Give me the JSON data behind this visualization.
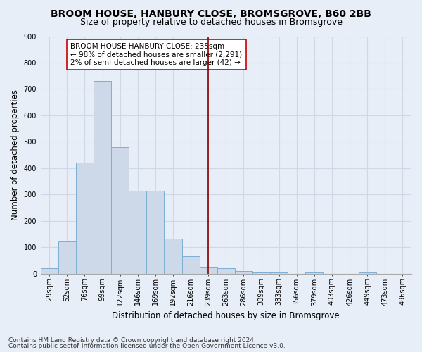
{
  "title": "BROOM HOUSE, HANBURY CLOSE, BROMSGROVE, B60 2BB",
  "subtitle": "Size of property relative to detached houses in Bromsgrove",
  "xlabel": "Distribution of detached houses by size in Bromsgrove",
  "ylabel": "Number of detached properties",
  "categories": [
    "29sqm",
    "52sqm",
    "76sqm",
    "99sqm",
    "122sqm",
    "146sqm",
    "169sqm",
    "192sqm",
    "216sqm",
    "239sqm",
    "263sqm",
    "286sqm",
    "309sqm",
    "333sqm",
    "356sqm",
    "379sqm",
    "403sqm",
    "426sqm",
    "449sqm",
    "473sqm",
    "496sqm"
  ],
  "values": [
    20,
    122,
    420,
    730,
    480,
    315,
    315,
    133,
    65,
    25,
    20,
    10,
    5,
    5,
    0,
    5,
    0,
    0,
    5,
    0,
    0
  ],
  "bar_color": "#cdd9e8",
  "bar_edge_color": "#7bafd4",
  "vline_index": 9,
  "vline_color": "#8b0000",
  "annotation_text": "BROOM HOUSE HANBURY CLOSE: 235sqm\n← 98% of detached houses are smaller (2,291)\n2% of semi-detached houses are larger (42) →",
  "annotation_box_color": "white",
  "annotation_box_edge_color": "#cc0000",
  "ylim": [
    0,
    900
  ],
  "yticks": [
    0,
    100,
    200,
    300,
    400,
    500,
    600,
    700,
    800,
    900
  ],
  "footer1": "Contains HM Land Registry data © Crown copyright and database right 2024.",
  "footer2": "Contains public sector information licensed under the Open Government Licence v3.0.",
  "bg_color": "#e8eef7",
  "plot_bg_color": "#e8eef7",
  "grid_color": "#d0d8e8",
  "title_fontsize": 10,
  "subtitle_fontsize": 9,
  "xlabel_fontsize": 8.5,
  "ylabel_fontsize": 8.5,
  "tick_fontsize": 7,
  "annotation_fontsize": 7.5,
  "footer_fontsize": 6.5
}
